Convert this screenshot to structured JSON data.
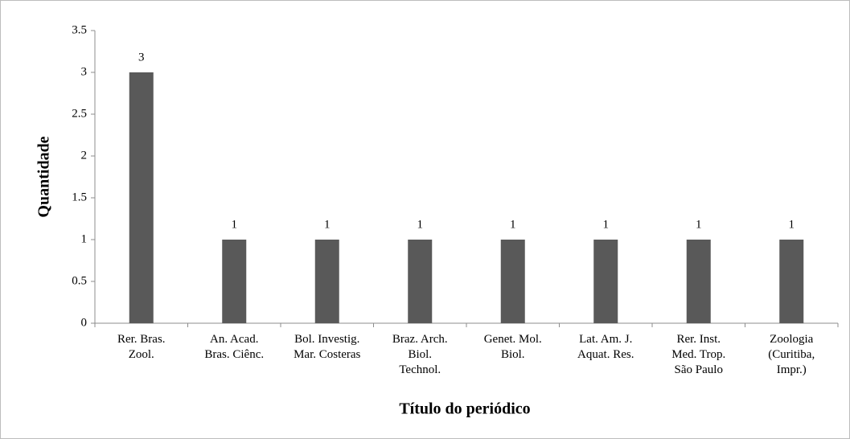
{
  "chart_data": {
    "type": "bar",
    "x_label": "Título do periódico",
    "y_label": "Quantidade",
    "categories": [
      "Rer. Bras.\nZool.",
      "An. Acad.\nBras. Ciênc.",
      "Bol. Investig.\nMar. Costeras",
      "Braz. Arch.\nBiol.\nTechnol.",
      "Genet. Mol.\nBiol.",
      "Lat. Am. J.\nAquat. Res.",
      "Rer. Inst.\nMed. Trop.\nSão Paulo",
      "Zoologia\n(Curitiba,\nImpr.)"
    ],
    "values": [
      3,
      1,
      1,
      1,
      1,
      1,
      1,
      1
    ],
    "color": "#595959",
    "ylim": [
      0,
      3.5
    ],
    "yticks": [
      0,
      0.5,
      1,
      1.5,
      2,
      2.5,
      3,
      3.5
    ],
    "grid": false
  }
}
